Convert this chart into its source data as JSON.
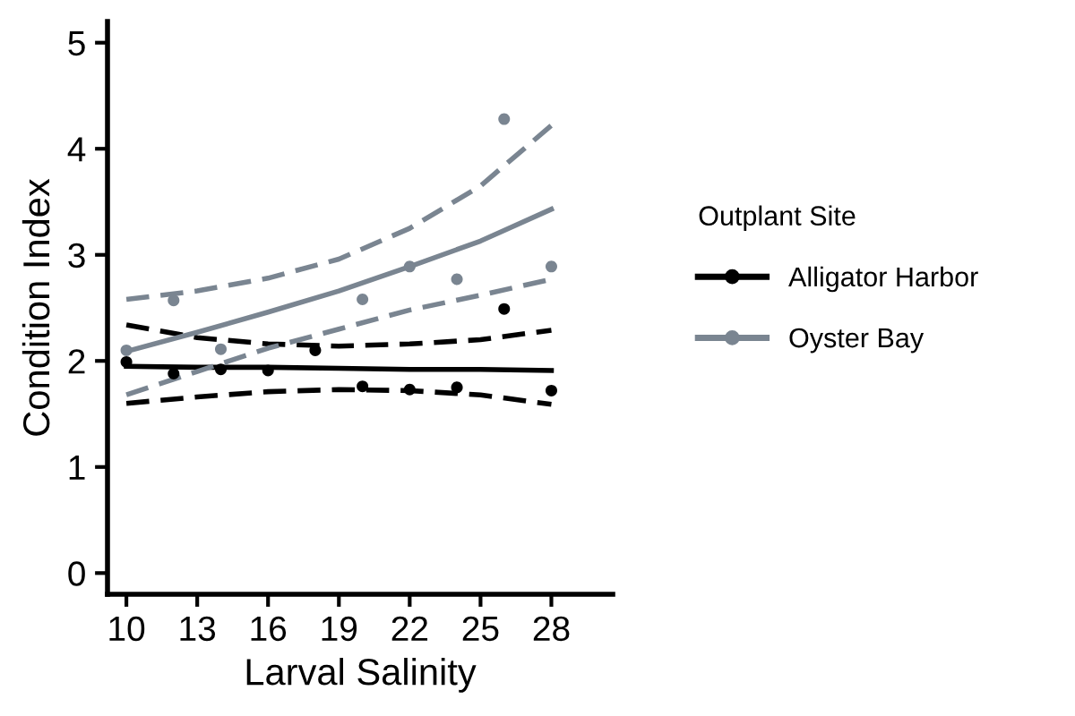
{
  "chart_data": {
    "type": "scatter",
    "xlabel": "Larval Salinity",
    "ylabel": "Condition Index",
    "legend_title": "Outplant Site",
    "legend": "right",
    "grid": false,
    "xlim": [
      9.2,
      30.6
    ],
    "xticks": [
      10,
      13,
      16,
      19,
      22,
      25,
      28
    ],
    "ylim": [
      -0.2,
      5.2
    ],
    "yticks": [
      0,
      1,
      2,
      3,
      4,
      5
    ],
    "x": [
      10,
      12,
      14,
      16,
      18,
      20,
      22,
      24,
      26,
      28
    ],
    "series": [
      {
        "name": "Alligator Harbor",
        "color": "#000000",
        "marker": "circle",
        "values": [
          1.99,
          1.88,
          1.92,
          1.91,
          2.1,
          1.76,
          1.73,
          1.75,
          2.49,
          1.72
        ]
      },
      {
        "name": "Oyster Bay",
        "color": "#7a8591",
        "marker": "circle",
        "values": [
          2.1,
          2.57,
          2.11,
          null,
          null,
          2.58,
          2.89,
          2.77,
          4.28,
          2.89
        ]
      },
      {
        "color": "#000000",
        "type": "line",
        "line_style": "solid",
        "x": [
          10,
          13,
          16,
          19,
          22,
          25,
          28
        ],
        "values": [
          1.95,
          1.94,
          1.94,
          1.93,
          1.92,
          1.92,
          1.91
        ]
      },
      {
        "color": "#000000",
        "type": "line",
        "line_style": "dashed",
        "x": [
          10,
          13,
          16,
          19,
          22,
          25,
          28
        ],
        "values": [
          2.34,
          2.22,
          2.16,
          2.14,
          2.16,
          2.2,
          2.29
        ]
      },
      {
        "color": "#000000",
        "type": "line",
        "line_style": "dashed",
        "x": [
          10,
          13,
          16,
          19,
          22,
          25,
          28
        ],
        "values": [
          1.6,
          1.66,
          1.71,
          1.73,
          1.72,
          1.68,
          1.59
        ]
      },
      {
        "color": "#7a8591",
        "type": "line",
        "line_style": "solid",
        "x": [
          10,
          13,
          16,
          19,
          22,
          25,
          28
        ],
        "values": [
          2.09,
          2.27,
          2.46,
          2.66,
          2.89,
          3.13,
          3.43
        ]
      },
      {
        "color": "#7a8591",
        "type": "line",
        "line_style": "dashed",
        "x": [
          10,
          13,
          16,
          19,
          22,
          25,
          28
        ],
        "values": [
          2.58,
          2.66,
          2.78,
          2.96,
          3.25,
          3.65,
          4.22
        ]
      },
      {
        "color": "#7a8591",
        "type": "line",
        "line_style": "dashed",
        "x": [
          10,
          13,
          16,
          19,
          22,
          25,
          28
        ],
        "values": [
          1.68,
          1.9,
          2.12,
          2.3,
          2.48,
          2.62,
          2.77
        ]
      }
    ]
  }
}
